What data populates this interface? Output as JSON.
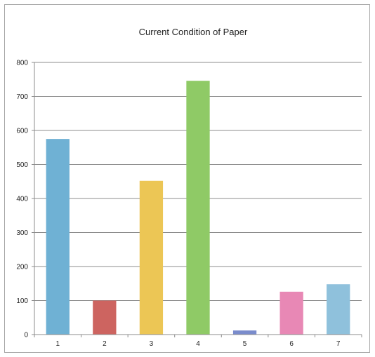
{
  "chart_data": {
    "type": "bar",
    "title": "Current Condition of Paper",
    "xlabel": "",
    "ylabel": "",
    "categories": [
      "1",
      "2",
      "3",
      "4",
      "5",
      "6",
      "7"
    ],
    "values": [
      575,
      100,
      452,
      746,
      12,
      126,
      148
    ],
    "colors": [
      "#6fb1d4",
      "#cd6460",
      "#ecc655",
      "#8fca66",
      "#7a8ccc",
      "#e888b5",
      "#8fc1dc"
    ],
    "ylim": [
      0,
      800
    ],
    "yticks": [
      "0",
      "100",
      "200",
      "300",
      "400",
      "500",
      "600",
      "700",
      "800"
    ],
    "grid": true,
    "legend": "none"
  }
}
